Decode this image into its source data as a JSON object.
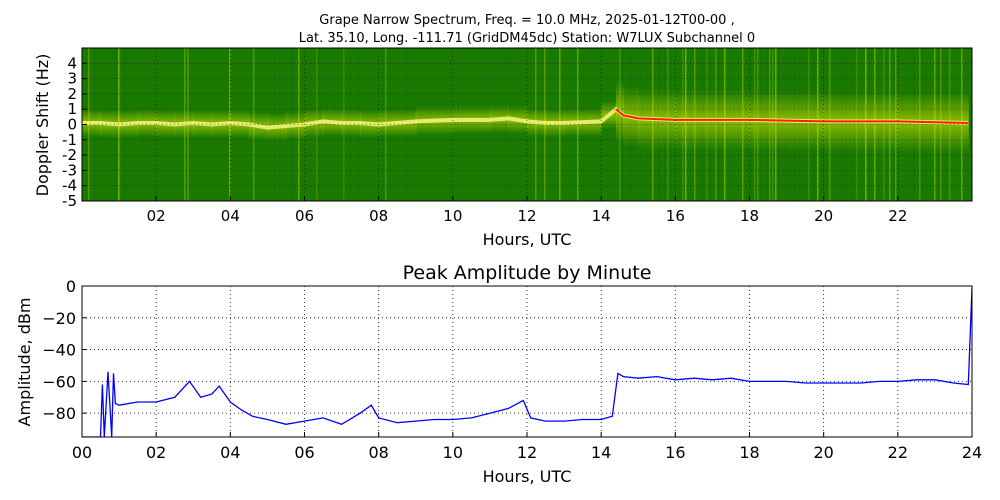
{
  "header": {
    "line1": "Grape Narrow Spectrum, Freq. = 10.0 MHz, 2025-01-12T00-00 ,",
    "line2": "Lat.  35.10, Long. -111.71 (GridDM45dc) Station: W7LUX Subchannel 0"
  },
  "colors": {
    "background_green": "#1a7a00",
    "dark_green": "#0f6a00",
    "yellow": "#e8f000",
    "light_yellow": "#f5f580",
    "red": "#ff2000",
    "line_blue": "#0000ff"
  },
  "chart_data": [
    {
      "type": "heatmap",
      "title": "",
      "xlabel": "Hours, UTC",
      "ylabel": "Doppler Shift (Hz)",
      "xlim": [
        0,
        24
      ],
      "ylim": [
        -5,
        5
      ],
      "x_ticks": [
        "02",
        "04",
        "06",
        "08",
        "10",
        "12",
        "14",
        "16",
        "18",
        "20",
        "22"
      ],
      "y_ticks": [
        "4",
        "3",
        "2",
        "1",
        "0",
        "-1",
        "-2",
        "-3",
        "-4",
        "-5"
      ],
      "grid": true,
      "trace": {
        "name": "",
        "x": [
          0.0,
          0.5,
          1.0,
          1.5,
          2.0,
          2.5,
          3.0,
          3.5,
          4.0,
          4.5,
          5.0,
          5.5,
          6.0,
          6.5,
          7.0,
          7.5,
          8.0,
          9.0,
          10.0,
          11.0,
          11.5,
          12.0,
          12.5,
          13.0,
          14.0,
          14.4,
          14.6,
          15.0,
          16.0,
          18.0,
          20.0,
          22.0,
          23.9
        ],
        "y": [
          0.1,
          0.1,
          0.0,
          0.1,
          0.1,
          0.0,
          0.1,
          0.0,
          0.1,
          0.0,
          -0.2,
          -0.1,
          0.0,
          0.2,
          0.1,
          0.1,
          0.0,
          0.2,
          0.3,
          0.3,
          0.4,
          0.2,
          0.1,
          0.1,
          0.2,
          1.0,
          0.6,
          0.4,
          0.3,
          0.3,
          0.2,
          0.2,
          0.1
        ]
      }
    },
    {
      "type": "line",
      "title": "Peak Amplitude by Minute",
      "xlabel": "Hours, UTC",
      "ylabel": "Amplitude, dBm",
      "xlim": [
        0,
        24
      ],
      "ylim": [
        -95,
        0
      ],
      "x_ticks": [
        "00",
        "02",
        "04",
        "06",
        "08",
        "10",
        "12",
        "14",
        "16",
        "18",
        "20",
        "22",
        "24"
      ],
      "y_ticks": [
        "0",
        "−20",
        "−40",
        "−60",
        "−80"
      ],
      "grid": true,
      "series": [
        {
          "name": "",
          "x": [
            0.0,
            0.5,
            0.55,
            0.6,
            0.7,
            0.8,
            0.85,
            0.9,
            1.0,
            1.5,
            2.0,
            2.5,
            2.9,
            3.2,
            3.5,
            3.7,
            4.0,
            4.3,
            4.6,
            5.0,
            5.5,
            6.0,
            6.5,
            7.0,
            7.5,
            7.8,
            8.0,
            8.5,
            9.0,
            9.5,
            10.0,
            10.5,
            11.0,
            11.5,
            11.9,
            12.1,
            12.5,
            13.0,
            13.5,
            14.0,
            14.3,
            14.45,
            14.6,
            15.0,
            15.5,
            16.0,
            16.5,
            17.0,
            17.5,
            18.0,
            18.5,
            19.0,
            19.5,
            20.0,
            20.5,
            21.0,
            21.5,
            22.0,
            22.5,
            23.0,
            23.5,
            23.9,
            24.0
          ],
          "y": [
            -95,
            -95,
            -62,
            -95,
            -54,
            -95,
            -55,
            -74,
            -75,
            -73,
            -73,
            -70,
            -60,
            -70,
            -68,
            -63,
            -73,
            -78,
            -82,
            -84,
            -87,
            -85,
            -83,
            -87,
            -80,
            -75,
            -83,
            -86,
            -85,
            -84,
            -84,
            -83,
            -80,
            -77,
            -72,
            -83,
            -85,
            -85,
            -84,
            -84,
            -82,
            -55,
            -57,
            -58,
            -57,
            -59,
            -58,
            -59,
            -58,
            -60,
            -60,
            -60,
            -61,
            -61,
            -61,
            -61,
            -60,
            -60,
            -59,
            -59,
            -61,
            -62,
            -1
          ]
        }
      ]
    }
  ]
}
